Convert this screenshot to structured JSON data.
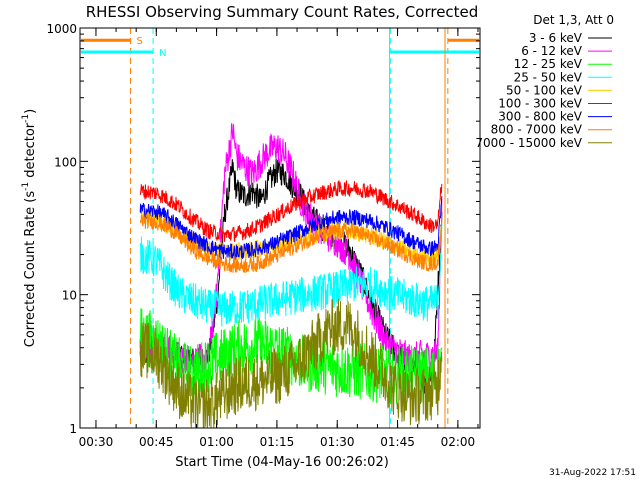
{
  "chart_data": {
    "type": "line",
    "title": "RHESSI Observing Summary Count Rates, Corrected",
    "xlabel": "Start Time (04-May-16 00:26:02)",
    "ylabel_main": "Corrected Count Rate (s",
    "ylabel_sup1": "-1",
    "ylabel_mid": " detector",
    "ylabel_sup2": "-1",
    "ylabel_end": ")",
    "yscale": "log",
    "ylim": [
      1,
      1000
    ],
    "xlim_minutes": [
      26.03,
      125.5
    ],
    "x_ticks": [
      {
        "label": "00:30",
        "minutes": 30
      },
      {
        "label": "00:45",
        "minutes": 45
      },
      {
        "label": "01:00",
        "minutes": 60
      },
      {
        "label": "01:15",
        "minutes": 75
      },
      {
        "label": "01:30",
        "minutes": 90
      },
      {
        "label": "01:45",
        "minutes": 105
      },
      {
        "label": "02:00",
        "minutes": 120
      }
    ],
    "y_ticks": [
      {
        "label": "1",
        "value": 1
      },
      {
        "label": "10",
        "value": 10
      },
      {
        "label": "100",
        "value": 100
      },
      {
        "label": "1000",
        "value": 1000
      }
    ],
    "legend_title": "Det 1,3, Att 0",
    "series": [
      {
        "name": "3 - 6 keV",
        "color": "#000000",
        "points": [
          [
            41,
            3.5
          ],
          [
            48,
            3.8
          ],
          [
            52,
            3.3
          ],
          [
            56,
            3.2
          ],
          [
            58,
            3.5
          ],
          [
            60,
            8
          ],
          [
            62,
            40
          ],
          [
            64,
            90
          ],
          [
            65,
            60
          ],
          [
            67,
            55
          ],
          [
            69,
            60
          ],
          [
            71,
            50
          ],
          [
            73,
            70
          ],
          [
            75,
            85
          ],
          [
            77,
            80
          ],
          [
            79,
            65
          ],
          [
            81,
            55
          ],
          [
            83,
            40
          ],
          [
            85,
            35
          ],
          [
            87,
            30
          ],
          [
            89,
            28
          ],
          [
            91,
            25
          ],
          [
            93,
            22
          ],
          [
            96,
            14
          ],
          [
            99,
            8
          ],
          [
            102,
            5
          ],
          [
            105,
            3.5
          ],
          [
            108,
            3
          ],
          [
            110,
            3
          ],
          [
            112,
            2
          ],
          [
            114,
            3
          ],
          [
            116,
            40
          ]
        ]
      },
      {
        "name": "6 - 12 keV",
        "color": "#ff00ff",
        "points": [
          [
            41,
            4
          ],
          [
            47,
            4
          ],
          [
            51,
            3.4
          ],
          [
            55,
            3.2
          ],
          [
            58,
            3.4
          ],
          [
            60,
            10
          ],
          [
            62,
            80
          ],
          [
            64,
            170
          ],
          [
            65,
            110
          ],
          [
            67,
            90
          ],
          [
            69,
            80
          ],
          [
            71,
            100
          ],
          [
            73,
            120
          ],
          [
            75,
            130
          ],
          [
            77,
            110
          ],
          [
            79,
            80
          ],
          [
            81,
            50
          ],
          [
            83,
            40
          ],
          [
            85,
            33
          ],
          [
            87,
            28
          ],
          [
            90,
            25
          ],
          [
            93,
            20
          ],
          [
            96,
            12
          ],
          [
            99,
            7
          ],
          [
            102,
            4.5
          ],
          [
            105,
            3.8
          ],
          [
            108,
            3.3
          ],
          [
            111,
            3.5
          ],
          [
            113,
            3.5
          ],
          [
            115,
            3.6
          ],
          [
            116,
            45
          ]
        ]
      },
      {
        "name": "12 - 25 keV",
        "color": "#00ff00",
        "points": [
          [
            41,
            5
          ],
          [
            45,
            4.5
          ],
          [
            50,
            3
          ],
          [
            54,
            2.5
          ],
          [
            58,
            3
          ],
          [
            62,
            3.5
          ],
          [
            66,
            4
          ],
          [
            70,
            4.2
          ],
          [
            74,
            4
          ],
          [
            78,
            3.5
          ],
          [
            82,
            3
          ],
          [
            86,
            3
          ],
          [
            90,
            2.8
          ],
          [
            94,
            2.7
          ],
          [
            98,
            2.6
          ],
          [
            102,
            2.5
          ],
          [
            106,
            2.5
          ],
          [
            110,
            2.5
          ],
          [
            114,
            2.5
          ],
          [
            116,
            3
          ]
        ]
      },
      {
        "name": "25 - 50 keV",
        "color": "#00ffff",
        "points": [
          [
            41,
            20
          ],
          [
            45,
            18
          ],
          [
            48,
            13
          ],
          [
            51,
            10
          ],
          [
            54,
            9
          ],
          [
            58,
            8
          ],
          [
            62,
            7.8
          ],
          [
            66,
            8
          ],
          [
            70,
            8.5
          ],
          [
            74,
            9
          ],
          [
            78,
            9.5
          ],
          [
            82,
            10
          ],
          [
            86,
            10.5
          ],
          [
            90,
            11
          ],
          [
            94,
            12
          ],
          [
            98,
            12
          ],
          [
            101,
            11
          ],
          [
            104,
            10
          ],
          [
            107,
            9.5
          ],
          [
            110,
            9
          ],
          [
            113,
            8.5
          ],
          [
            115,
            9
          ],
          [
            116,
            30
          ]
        ]
      },
      {
        "name": "50 - 100 keV",
        "color": "#ffcc00",
        "points": [
          [
            41,
            40
          ],
          [
            45,
            37
          ],
          [
            48,
            33
          ],
          [
            51,
            28
          ],
          [
            54,
            25
          ],
          [
            58,
            22
          ],
          [
            62,
            21
          ],
          [
            66,
            21
          ],
          [
            70,
            22
          ],
          [
            74,
            23
          ],
          [
            78,
            25
          ],
          [
            82,
            27
          ],
          [
            86,
            29
          ],
          [
            90,
            30
          ],
          [
            94,
            30
          ],
          [
            98,
            28
          ],
          [
            102,
            25
          ],
          [
            106,
            22
          ],
          [
            110,
            20
          ],
          [
            113,
            19
          ],
          [
            115,
            20
          ],
          [
            116,
            32
          ]
        ]
      },
      {
        "name": "100 - 300 keV",
        "color": "#ff0000",
        "points": [
          [
            41,
            60
          ],
          [
            45,
            58
          ],
          [
            48,
            52
          ],
          [
            51,
            45
          ],
          [
            54,
            37
          ],
          [
            58,
            30
          ],
          [
            62,
            28
          ],
          [
            66,
            29
          ],
          [
            70,
            32
          ],
          [
            74,
            38
          ],
          [
            78,
            45
          ],
          [
            82,
            52
          ],
          [
            86,
            58
          ],
          [
            90,
            62
          ],
          [
            94,
            63
          ],
          [
            98,
            60
          ],
          [
            102,
            52
          ],
          [
            106,
            45
          ],
          [
            110,
            38
          ],
          [
            113,
            33
          ],
          [
            115,
            33
          ],
          [
            116,
            70
          ]
        ]
      },
      {
        "name": "300 - 800 keV",
        "color": "#0000ff",
        "points": [
          [
            41,
            43
          ],
          [
            45,
            42
          ],
          [
            48,
            38
          ],
          [
            51,
            32
          ],
          [
            54,
            27
          ],
          [
            58,
            23
          ],
          [
            62,
            21
          ],
          [
            66,
            21
          ],
          [
            70,
            22
          ],
          [
            74,
            24
          ],
          [
            78,
            27
          ],
          [
            82,
            31
          ],
          [
            86,
            35
          ],
          [
            90,
            38
          ],
          [
            94,
            38
          ],
          [
            98,
            36
          ],
          [
            102,
            32
          ],
          [
            106,
            28
          ],
          [
            110,
            24
          ],
          [
            113,
            22
          ],
          [
            115,
            23
          ],
          [
            116,
            50
          ]
        ]
      },
      {
        "name": "800 - 7000 keV",
        "color": "#ff8000",
        "points": [
          [
            41,
            36
          ],
          [
            45,
            35
          ],
          [
            48,
            32
          ],
          [
            51,
            27
          ],
          [
            54,
            22
          ],
          [
            58,
            18.5
          ],
          [
            62,
            17
          ],
          [
            66,
            16.5
          ],
          [
            70,
            17
          ],
          [
            74,
            19
          ],
          [
            78,
            22
          ],
          [
            82,
            25
          ],
          [
            86,
            28
          ],
          [
            90,
            30
          ],
          [
            94,
            30
          ],
          [
            98,
            27
          ],
          [
            102,
            24
          ],
          [
            106,
            21
          ],
          [
            110,
            18
          ],
          [
            113,
            17
          ],
          [
            115,
            17.5
          ],
          [
            116,
            35
          ]
        ]
      },
      {
        "name": "7000 - 15000 keV",
        "color": "#808000",
        "points": [
          [
            41,
            4
          ],
          [
            45,
            3.5
          ],
          [
            48,
            2.5
          ],
          [
            52,
            1.7
          ],
          [
            56,
            1.4
          ],
          [
            60,
            1.6
          ],
          [
            64,
            2
          ],
          [
            68,
            2.2
          ],
          [
            72,
            2.3
          ],
          [
            76,
            2.5
          ],
          [
            80,
            3
          ],
          [
            84,
            4
          ],
          [
            88,
            5.5
          ],
          [
            92,
            6
          ],
          [
            94,
            5.5
          ],
          [
            97,
            4
          ],
          [
            100,
            3
          ],
          [
            104,
            2
          ],
          [
            108,
            1.7
          ],
          [
            112,
            1.8
          ],
          [
            115,
            2
          ],
          [
            116,
            4
          ]
        ]
      }
    ],
    "markers": [
      {
        "label": "S",
        "color": "#ff8000",
        "x_minutes": 38.6,
        "end_x_minutes": 117.5,
        "y_value": 810,
        "style": "dashed"
      },
      {
        "label": "N",
        "color": "#00ffff",
        "x_minutes": 44.2,
        "end_x_minutes": 103.2,
        "y_value": 660,
        "style": "dashed"
      }
    ],
    "annotations": [
      {
        "text": "31-Aug-2022 17:51"
      }
    ]
  }
}
